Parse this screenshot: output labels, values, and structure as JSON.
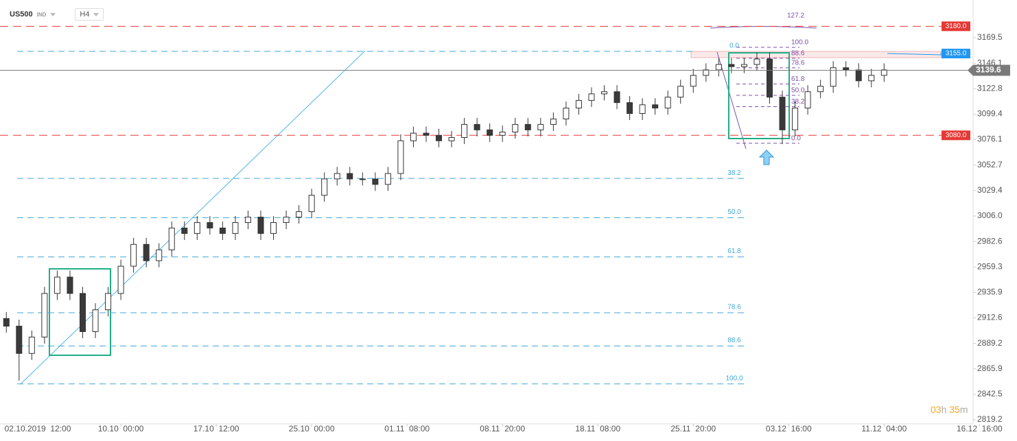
{
  "chart_data": {
    "type": "candlestick",
    "symbol": "US500",
    "market": "IND",
    "timeframe": "H4",
    "countdown": [
      "03",
      "h",
      "35",
      "m"
    ],
    "ylim": [
      2815.4,
      3204.1
    ],
    "yticks": [
      3169.5,
      3146.1,
      3122.8,
      3099.4,
      3076.1,
      3052.7,
      3029.4,
      {
        "value": 3006,
        "label": "3006.0"
      },
      2982.6,
      2959.3,
      2935.9,
      2912.6,
      2889.2,
      2865.9,
      2842.5,
      2819.2
    ],
    "xlim": [
      0,
      458
    ],
    "xticks": [
      {
        "value": 12,
        "label": "02.10.2019  12:00"
      },
      {
        "value": 57,
        "label": "10.10  00:00"
      },
      {
        "value": 102,
        "label": "17.10  12:00"
      },
      {
        "value": 147,
        "label": "25.10  00:00"
      },
      {
        "value": 192,
        "label": "01.11  08:00"
      },
      {
        "value": 237,
        "label": "08.11  20:00"
      },
      {
        "value": 282,
        "label": "18.11  08:00"
      },
      {
        "value": 327,
        "label": "25.11  20:00"
      },
      {
        "value": 372,
        "label": "03.12  16:00"
      },
      {
        "value": 417,
        "label": "11.12  04:00"
      },
      {
        "value": 462,
        "label": "16.12  16:00"
      }
    ],
    "up_color": "#ffffff",
    "down_color": "#3a3a3a",
    "x": [
      3,
      9,
      15,
      21,
      27,
      33,
      39,
      45,
      51,
      57,
      63,
      69,
      75,
      81,
      87,
      93,
      99,
      105,
      111,
      117,
      123,
      129,
      135,
      141,
      147,
      153,
      159,
      165,
      171,
      177,
      183,
      189,
      195,
      201,
      207,
      213,
      219,
      225,
      231,
      237,
      243,
      249,
      255,
      261,
      267,
      273,
      279,
      285,
      291,
      297,
      303,
      309,
      315,
      321,
      327,
      333,
      339,
      345,
      351,
      357,
      363,
      369,
      375,
      381,
      387,
      393,
      399,
      405,
      411,
      417
    ],
    "open": [
      2912,
      2905,
      2880,
      2895,
      2935,
      2950,
      2935,
      2900,
      2920,
      2935,
      2960,
      2980,
      2965,
      2975,
      2995,
      2990,
      3000,
      2995,
      2990,
      3000,
      3005,
      2990,
      3000,
      3005,
      3010,
      3025,
      3040,
      3045,
      3040,
      3040,
      3035,
      3045,
      3075,
      3082,
      3080,
      3075,
      3078,
      3090,
      3085,
      3080,
      3083,
      3090,
      3085,
      3090,
      3095,
      3105,
      3112,
      3118,
      3120,
      3110,
      3100,
      3108,
      3105,
      3115,
      3125,
      3135,
      3140,
      3145,
      3143,
      3145,
      3150,
      3115,
      3085,
      3105,
      3120,
      3125,
      3142,
      3140,
      3130,
      3135
    ],
    "high": [
      2918,
      2911,
      2901,
      2941,
      2956,
      2956,
      2941,
      2926,
      2941,
      2966,
      2986,
      2986,
      2981,
      3001,
      3001,
      3006,
      3006,
      3001,
      3006,
      3011,
      3011,
      3006,
      3011,
      3016,
      3031,
      3046,
      3051,
      3051,
      3046,
      3046,
      3051,
      3081,
      3088,
      3088,
      3086,
      3084,
      3096,
      3096,
      3091,
      3089,
      3096,
      3096,
      3096,
      3101,
      3111,
      3118,
      3124,
      3126,
      3126,
      3116,
      3114,
      3114,
      3121,
      3131,
      3141,
      3146,
      3151,
      3151,
      3151,
      3156,
      3156,
      3121,
      3111,
      3126,
      3131,
      3148,
      3148,
      3146,
      3141,
      3146
    ],
    "low": [
      2899,
      2855,
      2874,
      2889,
      2929,
      2929,
      2894,
      2894,
      2914,
      2929,
      2954,
      2959,
      2959,
      2969,
      2984,
      2984,
      2989,
      2984,
      2984,
      2994,
      2984,
      2984,
      2994,
      2999,
      3004,
      3019,
      3034,
      3034,
      3034,
      3029,
      3029,
      3039,
      3069,
      3074,
      3069,
      3069,
      3072,
      3079,
      3074,
      3074,
      3077,
      3079,
      3079,
      3084,
      3089,
      3099,
      3106,
      3112,
      3104,
      3094,
      3094,
      3099,
      3099,
      3109,
      3119,
      3129,
      3134,
      3137,
      3137,
      3139,
      3109,
      3072,
      3079,
      3099,
      3114,
      3119,
      3134,
      3124,
      3124,
      3129
    ],
    "close": [
      2905,
      2880,
      2895,
      2935,
      2950,
      2935,
      2900,
      2920,
      2935,
      2960,
      2980,
      2965,
      2975,
      2995,
      2990,
      3000,
      2995,
      2990,
      3000,
      3005,
      2990,
      3000,
      3005,
      3010,
      3025,
      3040,
      3045,
      3040,
      3040,
      3035,
      3045,
      3075,
      3082,
      3080,
      3075,
      3078,
      3090,
      3085,
      3080,
      3083,
      3090,
      3085,
      3090,
      3095,
      3105,
      3112,
      3118,
      3120,
      3110,
      3100,
      3108,
      3105,
      3115,
      3125,
      3135,
      3140,
      3145,
      3143,
      3145,
      3150,
      3115,
      3085,
      3105,
      3120,
      3125,
      3142,
      3140,
      3130,
      3135,
      3140
    ],
    "levels": [
      {
        "value": 3180,
        "label": "3180.0",
        "color": "#e53935"
      },
      {
        "value": 3155,
        "label": "3155.0",
        "color": "#2196f3"
      },
      {
        "value": 3080,
        "label": "3080.0",
        "color": "#e53935"
      }
    ],
    "last_price": {
      "value": 3139.6,
      "label": "3139.6",
      "color": "#7a7a7a"
    },
    "fib_left": {
      "color": "#3fa7d6",
      "levels": [
        {
          "label": "0.0",
          "value": 3157
        },
        {
          "label": "38.2",
          "value": 3040.5
        },
        {
          "label": "50.0",
          "value": 3004.5
        },
        {
          "label": "61.8",
          "value": 2968.5
        },
        {
          "label": "78.6",
          "value": 2917.3
        },
        {
          "label": "88.6",
          "value": 2886.8
        },
        {
          "label": "100.0",
          "value": 2852
        }
      ]
    },
    "fib_right": {
      "color": "#7b4fa8",
      "levels": [
        {
          "label": "127.2",
          "value": 3185.2
        },
        {
          "label": "100.0",
          "value": 3160.7
        },
        {
          "label": "88.6",
          "value": 3150.7
        },
        {
          "label": "78.6",
          "value": 3141.9
        },
        {
          "label": "61.8",
          "value": 3127.1
        },
        {
          "label": "50.0",
          "value": 3116.7
        },
        {
          "label": "38.2",
          "value": 3106.3
        },
        {
          "label": "0.0",
          "value": 3072.7
        }
      ]
    }
  }
}
